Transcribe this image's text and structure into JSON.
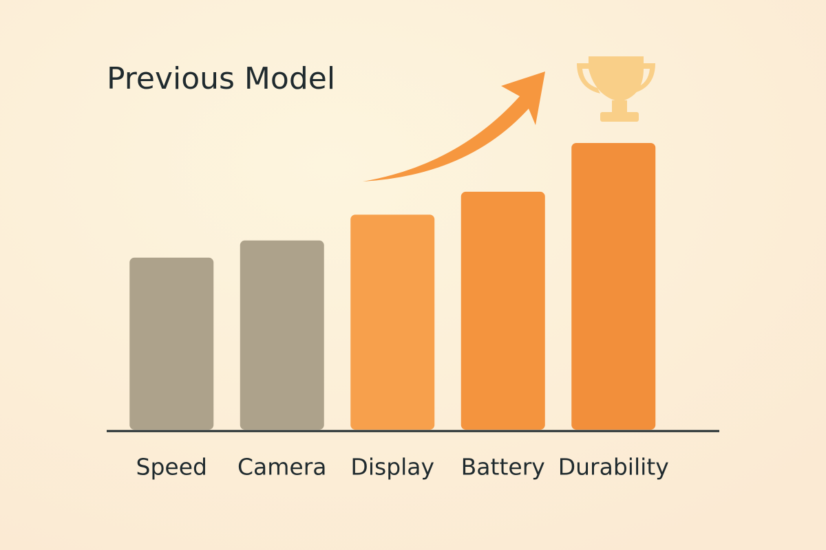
{
  "chart_data": {
    "type": "bar",
    "title": "Previous Model",
    "categories": [
      "Speed",
      "Camera",
      "Display",
      "Battery",
      "Durability"
    ],
    "values": [
      60,
      66,
      75,
      83,
      100
    ],
    "colors": [
      "#ada28b",
      "#ada28b",
      "#f7a04c",
      "#f4943e",
      "#f28f3b"
    ]
  }
}
